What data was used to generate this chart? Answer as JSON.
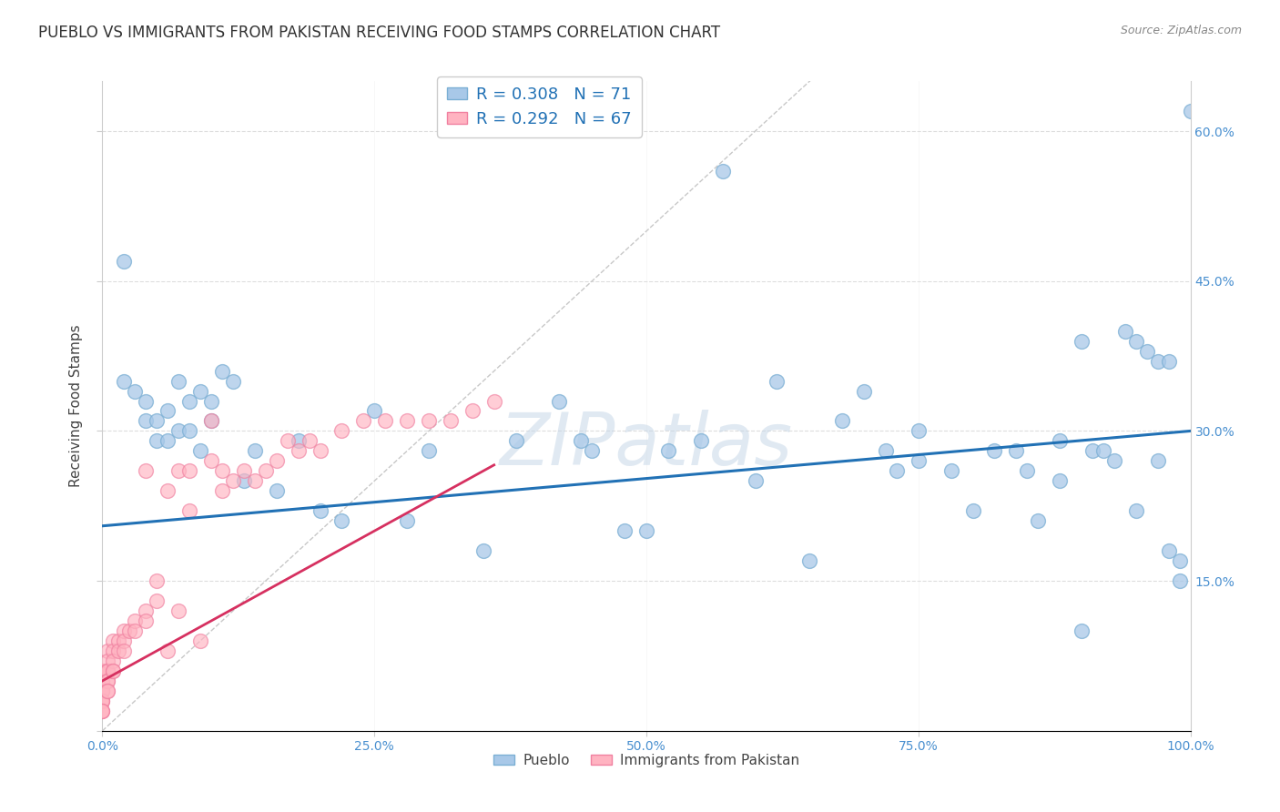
{
  "title": "PUEBLO VS IMMIGRANTS FROM PAKISTAN RECEIVING FOOD STAMPS CORRELATION CHART",
  "source": "Source: ZipAtlas.com",
  "ylabel": "Receiving Food Stamps",
  "xlim": [
    0.0,
    1.0
  ],
  "ylim": [
    0.0,
    0.65
  ],
  "xticks": [
    0.0,
    0.25,
    0.5,
    0.75,
    1.0
  ],
  "xtick_labels": [
    "0.0%",
    "25.0%",
    "50.0%",
    "75.0%",
    "100.0%"
  ],
  "yticks": [
    0.0,
    0.15,
    0.3,
    0.45,
    0.6
  ],
  "ytick_labels_right": [
    "",
    "15.0%",
    "30.0%",
    "45.0%",
    "60.0%"
  ],
  "blue_color": "#a8c8e8",
  "blue_edge_color": "#7bafd4",
  "blue_line_color": "#2171b5",
  "pink_color": "#ffb3c1",
  "pink_edge_color": "#f080a0",
  "pink_line_color": "#d63060",
  "diagonal_color": "#c8c8c8",
  "tick_color": "#4a90d0",
  "legend_label1": "Pueblo",
  "legend_label2": "Immigrants from Pakistan",
  "blue_intercept": 0.205,
  "blue_slope": 0.095,
  "pink_intercept": 0.05,
  "pink_slope": 0.6,
  "background_color": "#ffffff",
  "grid_color": "#dddddd",
  "title_fontsize": 12,
  "axis_label_fontsize": 11,
  "tick_fontsize": 10,
  "watermark_text": "ZIPatlas",
  "blue_x": [
    0.02,
    0.02,
    0.03,
    0.04,
    0.04,
    0.05,
    0.05,
    0.06,
    0.06,
    0.07,
    0.07,
    0.08,
    0.08,
    0.09,
    0.09,
    0.1,
    0.1,
    0.11,
    0.12,
    0.13,
    0.14,
    0.16,
    0.18,
    0.2,
    0.22,
    0.25,
    0.28,
    0.3,
    0.35,
    0.38,
    0.42,
    0.44,
    0.45,
    0.48,
    0.5,
    0.52,
    0.55,
    0.57,
    0.6,
    0.62,
    0.65,
    0.68,
    0.7,
    0.72,
    0.73,
    0.75,
    0.75,
    0.78,
    0.8,
    0.82,
    0.84,
    0.85,
    0.86,
    0.88,
    0.88,
    0.9,
    0.9,
    0.91,
    0.92,
    0.93,
    0.94,
    0.95,
    0.95,
    0.96,
    0.97,
    0.97,
    0.98,
    0.98,
    0.99,
    0.99,
    1.0
  ],
  "blue_y": [
    0.47,
    0.35,
    0.34,
    0.31,
    0.33,
    0.29,
    0.31,
    0.29,
    0.32,
    0.3,
    0.35,
    0.3,
    0.33,
    0.34,
    0.28,
    0.33,
    0.31,
    0.36,
    0.35,
    0.25,
    0.28,
    0.24,
    0.29,
    0.22,
    0.21,
    0.32,
    0.21,
    0.28,
    0.18,
    0.29,
    0.33,
    0.29,
    0.28,
    0.2,
    0.2,
    0.28,
    0.29,
    0.56,
    0.25,
    0.35,
    0.17,
    0.31,
    0.34,
    0.28,
    0.26,
    0.27,
    0.3,
    0.26,
    0.22,
    0.28,
    0.28,
    0.26,
    0.21,
    0.29,
    0.25,
    0.39,
    0.1,
    0.28,
    0.28,
    0.27,
    0.4,
    0.22,
    0.39,
    0.38,
    0.37,
    0.27,
    0.37,
    0.18,
    0.17,
    0.15,
    0.62
  ],
  "pink_x": [
    0.0,
    0.0,
    0.0,
    0.0,
    0.0,
    0.0,
    0.0,
    0.0,
    0.0,
    0.0,
    0.0,
    0.0,
    0.0,
    0.005,
    0.005,
    0.005,
    0.005,
    0.005,
    0.005,
    0.005,
    0.005,
    0.01,
    0.01,
    0.01,
    0.01,
    0.01,
    0.015,
    0.015,
    0.02,
    0.02,
    0.02,
    0.025,
    0.03,
    0.03,
    0.04,
    0.04,
    0.04,
    0.05,
    0.05,
    0.06,
    0.06,
    0.07,
    0.07,
    0.08,
    0.08,
    0.09,
    0.1,
    0.1,
    0.11,
    0.11,
    0.12,
    0.13,
    0.14,
    0.15,
    0.16,
    0.17,
    0.18,
    0.19,
    0.2,
    0.22,
    0.24,
    0.26,
    0.28,
    0.3,
    0.32,
    0.34,
    0.36
  ],
  "pink_y": [
    0.06,
    0.06,
    0.05,
    0.05,
    0.04,
    0.04,
    0.04,
    0.03,
    0.03,
    0.03,
    0.02,
    0.02,
    0.02,
    0.08,
    0.07,
    0.06,
    0.06,
    0.05,
    0.05,
    0.04,
    0.04,
    0.09,
    0.08,
    0.07,
    0.06,
    0.06,
    0.09,
    0.08,
    0.1,
    0.09,
    0.08,
    0.1,
    0.11,
    0.1,
    0.12,
    0.11,
    0.26,
    0.15,
    0.13,
    0.24,
    0.08,
    0.26,
    0.12,
    0.26,
    0.22,
    0.09,
    0.27,
    0.31,
    0.26,
    0.24,
    0.25,
    0.26,
    0.25,
    0.26,
    0.27,
    0.29,
    0.28,
    0.29,
    0.28,
    0.3,
    0.31,
    0.31,
    0.31,
    0.31,
    0.31,
    0.32,
    0.33
  ]
}
